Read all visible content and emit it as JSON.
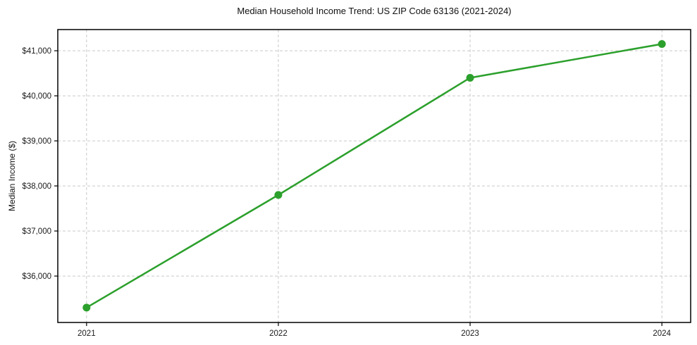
{
  "chart_data": {
    "type": "line",
    "title": "Median Household Income Trend: US ZIP Code 63136 (2021-2024)",
    "xlabel": "",
    "ylabel": "Median Income ($)",
    "categories": [
      "2021",
      "2022",
      "2023",
      "2024"
    ],
    "series": [
      {
        "name": "Median Household Income",
        "values": [
          35300,
          37800,
          40400,
          41150
        ]
      }
    ],
    "yticks": [
      36000,
      37000,
      38000,
      39000,
      40000,
      41000
    ],
    "ytick_labels": [
      "$36,000",
      "$37,000",
      "$38,000",
      "$39,000",
      "$40,000",
      "$41,000"
    ],
    "ylim": [
      34970,
      41470
    ],
    "grid": true,
    "grid_style": "dashed",
    "legend": null,
    "marker": "circle",
    "colors": {
      "line": "#2ca02c",
      "marker": "#2ca02c",
      "grid": "#c9c9c9",
      "spine": "#000000",
      "text": "#1a1a1a",
      "background": "#ffffff"
    }
  }
}
